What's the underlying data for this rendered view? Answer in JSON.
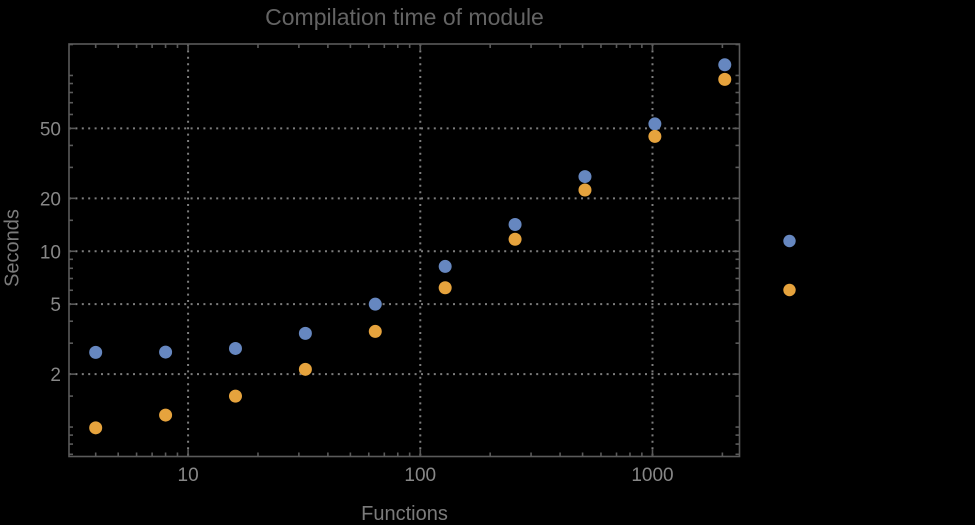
{
  "chart_data": {
    "type": "scatter",
    "title": "Compilation time of module",
    "xlabel": "Functions",
    "ylabel": "Seconds",
    "x_scale": "log",
    "y_scale": "log",
    "xlim": [
      3.07,
      2370
    ],
    "ylim": [
      0.68,
      151
    ],
    "x_ticks": [
      10,
      100,
      1000
    ],
    "y_ticks": [
      2,
      5,
      10,
      20,
      50
    ],
    "grid": "dotted gray lines at labeled ticks only",
    "legend_position": "right of frame, markers only (no visible labels)",
    "x": [
      4,
      8,
      16,
      32,
      64,
      128,
      256,
      512,
      1024,
      2048
    ],
    "series": [
      {
        "name": "series-1-blue",
        "marker": "circle",
        "color": "#6687c0",
        "values": [
          2.66,
          2.67,
          2.8,
          3.41,
          5.0,
          8.2,
          14.2,
          26.6,
          53,
          115
        ]
      },
      {
        "name": "series-2-orange",
        "marker": "circle",
        "color": "#e6a33d",
        "values": [
          0.99,
          1.17,
          1.5,
          2.13,
          3.5,
          6.2,
          11.7,
          22.3,
          45,
          95
        ]
      }
    ],
    "colors": {
      "background": "#000000",
      "frame": "#5a5a5a",
      "grid": "#7d7d7d",
      "tick_label": "#878787",
      "axis_label": "#7b7b7b",
      "title": "#646464"
    }
  }
}
